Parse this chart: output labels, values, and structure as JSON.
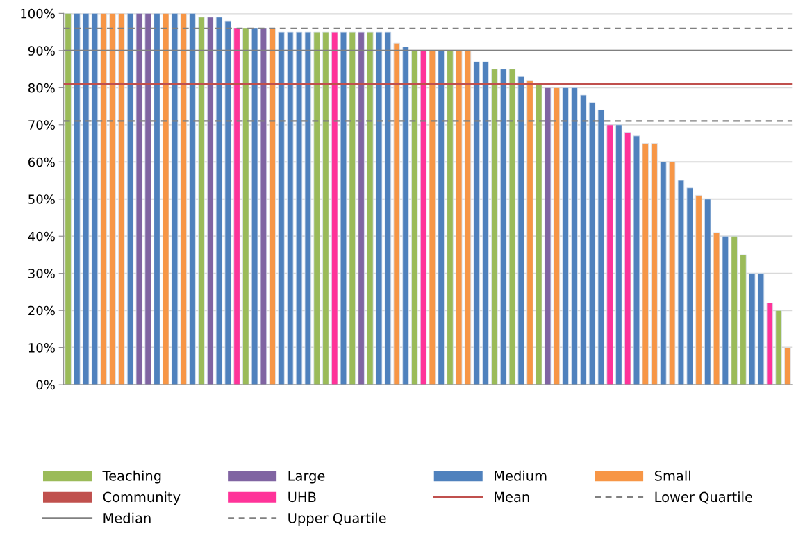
{
  "chart_data": {
    "type": "bar",
    "categories": [
      null,
      null,
      null,
      null,
      null,
      null,
      null,
      null,
      null,
      null,
      null,
      null,
      null,
      null,
      null,
      null,
      null,
      null,
      null,
      null,
      null,
      null,
      null,
      null,
      null,
      null,
      null,
      null,
      null,
      null,
      null,
      null,
      null,
      null,
      null,
      null,
      null,
      null,
      null,
      null,
      null,
      null,
      null,
      null,
      null,
      null,
      null,
      null,
      null,
      null,
      null,
      null,
      null,
      null,
      null,
      null,
      null,
      null,
      null,
      null,
      null,
      null,
      null,
      null,
      null,
      null,
      null,
      null,
      null,
      null,
      null,
      null,
      null,
      null,
      null,
      null,
      null,
      null,
      null,
      null,
      null,
      null
    ],
    "series": [
      {
        "name": "Teaching",
        "color": "#9bbb59",
        "values": [
          100,
          null,
          null,
          null,
          null,
          null,
          null,
          null,
          null,
          null,
          null,
          null,
          null,
          null,
          null,
          99,
          null,
          null,
          null,
          null,
          96,
          null,
          null,
          null,
          null,
          null,
          null,
          null,
          95,
          95,
          null,
          null,
          95,
          null,
          95,
          null,
          null,
          null,
          null,
          90,
          null,
          null,
          null,
          90,
          null,
          null,
          null,
          null,
          85,
          null,
          85,
          null,
          null,
          81,
          null,
          null,
          null,
          null,
          null,
          null,
          null,
          null,
          null,
          null,
          null,
          null,
          null,
          null,
          null,
          null,
          null,
          null,
          null,
          null,
          null,
          40,
          35,
          null,
          null,
          null,
          20,
          null
        ]
      },
      {
        "name": "Large",
        "color": "#8064a2",
        "values": [
          null,
          null,
          null,
          null,
          null,
          null,
          null,
          null,
          100,
          100,
          null,
          null,
          null,
          null,
          null,
          null,
          99,
          null,
          null,
          null,
          null,
          null,
          96,
          null,
          null,
          null,
          null,
          null,
          null,
          null,
          null,
          null,
          null,
          95,
          null,
          null,
          null,
          null,
          null,
          null,
          null,
          null,
          null,
          null,
          null,
          null,
          null,
          null,
          null,
          null,
          null,
          null,
          null,
          null,
          80,
          null,
          null,
          null,
          null,
          null,
          null,
          null,
          null,
          null,
          null,
          null,
          null,
          null,
          null,
          null,
          null,
          null,
          null,
          null,
          null,
          null,
          null,
          null,
          null,
          null,
          null,
          null
        ]
      },
      {
        "name": "Medium",
        "color": "#4f81bd",
        "values": [
          null,
          100,
          100,
          100,
          null,
          null,
          null,
          100,
          null,
          null,
          100,
          null,
          100,
          null,
          100,
          null,
          null,
          99,
          98,
          null,
          null,
          96,
          null,
          null,
          95,
          95,
          95,
          95,
          null,
          null,
          null,
          95,
          null,
          null,
          null,
          95,
          95,
          null,
          91,
          null,
          null,
          null,
          90,
          null,
          null,
          null,
          87,
          87,
          null,
          85,
          null,
          83,
          null,
          null,
          null,
          null,
          80,
          80,
          78,
          76,
          74,
          null,
          70,
          null,
          67,
          null,
          null,
          60,
          null,
          55,
          53,
          null,
          50,
          null,
          40,
          null,
          null,
          30,
          30,
          null,
          null,
          null
        ]
      },
      {
        "name": "Small",
        "color": "#f79646",
        "values": [
          null,
          null,
          null,
          null,
          100,
          100,
          100,
          null,
          null,
          null,
          null,
          100,
          null,
          100,
          null,
          null,
          null,
          null,
          null,
          null,
          null,
          null,
          null,
          96,
          null,
          null,
          null,
          null,
          null,
          null,
          null,
          null,
          null,
          null,
          null,
          null,
          null,
          92,
          null,
          null,
          null,
          90,
          null,
          null,
          90,
          90,
          null,
          null,
          null,
          null,
          null,
          null,
          82,
          null,
          null,
          80,
          null,
          null,
          null,
          null,
          null,
          null,
          null,
          null,
          null,
          65,
          65,
          null,
          60,
          null,
          null,
          51,
          null,
          41,
          null,
          null,
          null,
          null,
          null,
          null,
          null,
          10
        ]
      },
      {
        "name": "Community",
        "color": "#c0504d",
        "values": [
          null,
          null,
          null,
          null,
          null,
          null,
          null,
          null,
          null,
          null,
          null,
          null,
          null,
          null,
          null,
          null,
          null,
          null,
          null,
          null,
          null,
          null,
          null,
          null,
          null,
          null,
          null,
          null,
          null,
          null,
          null,
          null,
          null,
          null,
          null,
          null,
          null,
          null,
          null,
          null,
          null,
          null,
          null,
          null,
          null,
          null,
          null,
          null,
          null,
          null,
          null,
          null,
          null,
          null,
          null,
          null,
          null,
          null,
          null,
          null,
          null,
          null,
          null,
          null,
          null,
          null,
          null,
          null,
          null,
          null,
          null,
          null,
          null,
          null,
          null,
          null,
          null,
          null,
          null,
          null,
          null,
          null
        ]
      },
      {
        "name": "UHB",
        "color": "#ff3399",
        "values": [
          null,
          null,
          null,
          null,
          null,
          null,
          null,
          null,
          null,
          null,
          null,
          null,
          null,
          null,
          null,
          null,
          null,
          null,
          null,
          96,
          null,
          null,
          null,
          null,
          null,
          null,
          null,
          null,
          null,
          null,
          95,
          null,
          null,
          null,
          null,
          null,
          null,
          null,
          null,
          null,
          90,
          null,
          null,
          null,
          null,
          null,
          null,
          null,
          null,
          null,
          null,
          null,
          null,
          null,
          null,
          null,
          null,
          null,
          null,
          null,
          null,
          70,
          null,
          68,
          null,
          null,
          null,
          null,
          null,
          null,
          null,
          null,
          null,
          null,
          null,
          null,
          null,
          null,
          null,
          22,
          null,
          null
        ]
      }
    ],
    "ref_lines": [
      {
        "axis": "y",
        "value": 81,
        "label": "Mean",
        "color": "#c0504d",
        "line_style": "solid"
      },
      {
        "axis": "y",
        "value": 71,
        "label": "Lower Quartile",
        "color": "#808080",
        "line_style": "dashed"
      },
      {
        "axis": "y",
        "value": 90,
        "label": "Median",
        "color": "#808080",
        "line_style": "solid"
      },
      {
        "axis": "y",
        "value": 96,
        "label": "Upper Quartile",
        "color": "#808080",
        "line_style": "dashed"
      }
    ],
    "ylim": [
      0,
      100
    ],
    "yticks": [
      {
        "value": 0,
        "label": "0%"
      },
      {
        "value": 10,
        "label": "10%"
      },
      {
        "value": 20,
        "label": "20%"
      },
      {
        "value": 30,
        "label": "30%"
      },
      {
        "value": 40,
        "label": "40%"
      },
      {
        "value": 50,
        "label": "50%"
      },
      {
        "value": 60,
        "label": "60%"
      },
      {
        "value": 70,
        "label": "70%"
      },
      {
        "value": 80,
        "label": "80%"
      },
      {
        "value": 90,
        "label": "90%"
      },
      {
        "value": 100,
        "label": "100%"
      }
    ],
    "grid": "y",
    "legend": "bottom"
  }
}
